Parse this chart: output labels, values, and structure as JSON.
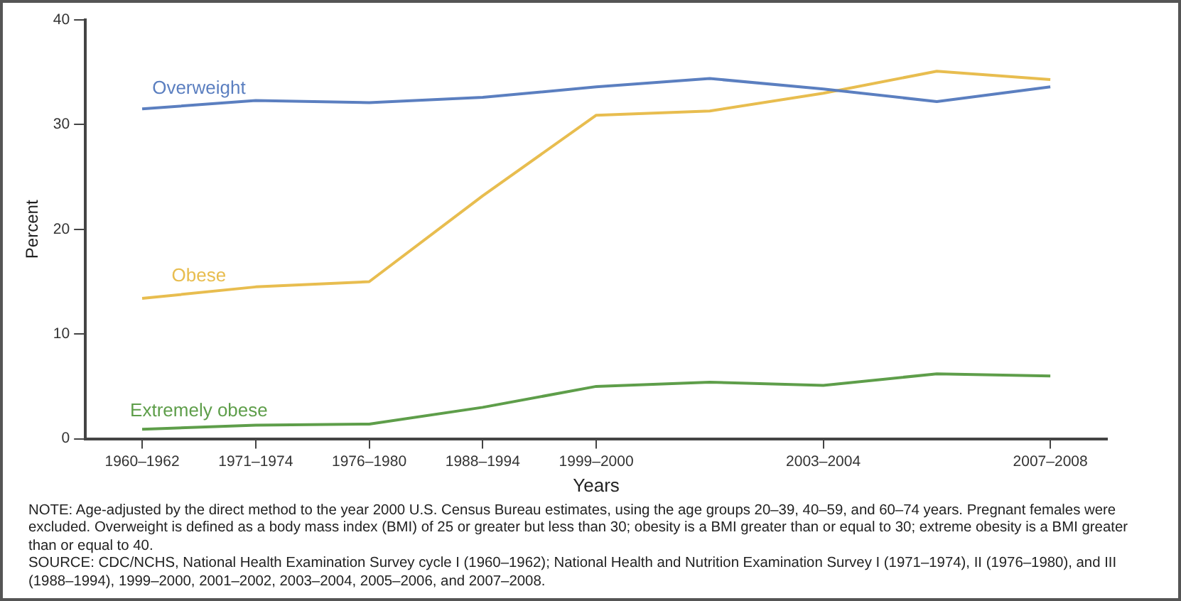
{
  "chart_data": {
    "type": "line",
    "xlabel": "Years",
    "ylabel": "Percent",
    "categories": [
      "1960–1962",
      "1971–1974",
      "1976–1980",
      "1988–1994",
      "1999–2000",
      null,
      "2003–2004",
      null,
      "2007–2008"
    ],
    "ylim": [
      0,
      40
    ],
    "yticks": [
      0,
      10,
      20,
      30,
      40
    ],
    "grid": false,
    "legend": false,
    "marker": "none",
    "line_style": "solid",
    "series": [
      {
        "name": "Overweight",
        "color": "#5b7fc0",
        "values": [
          31.5,
          32.3,
          32.1,
          32.6,
          33.6,
          34.4,
          33.4,
          32.2,
          33.6
        ]
      },
      {
        "name": "Obese",
        "color": "#e8bd4f",
        "values": [
          13.4,
          14.5,
          15.0,
          23.2,
          30.9,
          31.3,
          33.0,
          35.1,
          34.3
        ]
      },
      {
        "name": "Extremely obese",
        "color": "#5e9e4a",
        "values": [
          0.9,
          1.3,
          1.4,
          3.0,
          5.0,
          5.4,
          5.1,
          6.2,
          6.0
        ]
      }
    ],
    "annotations": [
      "NOTE: Age-adjusted by the direct method to the year 2000 U.S. Census Bureau estimates, using the age groups 20–39, 40–59, and 60–74 years. Pregnant females were excluded. Overweight is defined as a body mass index (BMI) of 25 or greater but less than 30; obesity is a BMI greater than or equal to 30; extreme obesity is a BMI greater than or equal to 40.",
      "SOURCE: CDC/NCHS, National Health Examination Survey cycle I (1960–1962); National Health and Nutrition Examination Survey I (1971–1974), II (1976–1980), and III (1988–1994), 1999–2000, 2001–2002, 2003–2004, 2005–2006, and 2007–2008."
    ]
  }
}
